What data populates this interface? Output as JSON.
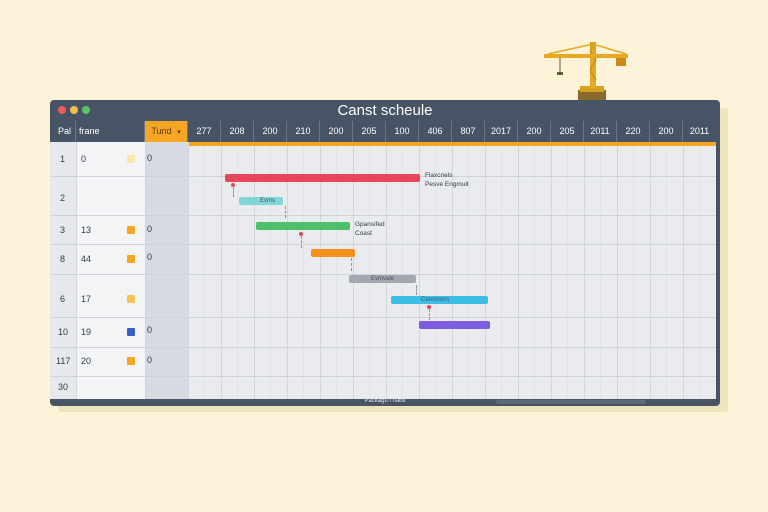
{
  "window": {
    "title": "Canst scheule"
  },
  "columns": {
    "c1": "Pal",
    "c2": "frane",
    "task": "Tund",
    "task_arrow": "▾"
  },
  "timeline": [
    "277",
    "208",
    "200",
    "210",
    "200",
    "205",
    "100",
    "406",
    "807",
    "2017",
    "200",
    "205",
    "2011",
    "220",
    "200",
    "2011"
  ],
  "rows": [
    {
      "num": "1",
      "a": "0",
      "icon": "#f6c453",
      "b": "0"
    },
    {
      "num": "2",
      "a": "",
      "icon": "",
      "b": ""
    },
    {
      "num": "3",
      "a": "13",
      "icon": "#f6a623",
      "b": "0"
    },
    {
      "num": "8",
      "a": "44",
      "icon": "#f6a623",
      "b": "0"
    },
    {
      "num": "6",
      "a": "17",
      "icon": "#f6c453",
      "b": ""
    },
    {
      "num": "10",
      "a": "19",
      "icon": "#3b5fc9",
      "b": "0"
    },
    {
      "num": "117",
      "a": "20",
      "icon": "#f6a623",
      "b": "0"
    },
    {
      "num": "30",
      "a": "",
      "icon": "",
      "b": ""
    }
  ],
  "bars": [
    {
      "color": "#e8475b",
      "label": ""
    },
    {
      "color": "#7fd6d6",
      "label": "Evms"
    },
    {
      "color": "#4cc16a",
      "label": ""
    },
    {
      "color": "#f5901c",
      "label": ""
    },
    {
      "color": "#a3a8b0",
      "label": "Evmvale"
    },
    {
      "color": "#3bbde4",
      "label": "Cancinons"
    },
    {
      "color": "#7d5ce0",
      "label": ""
    }
  ],
  "annotations": {
    "a1_line1": "Flaxcnels",
    "a1_line2": "Pesve Engmuit",
    "a2_line1": "Gpansifed",
    "a2_line2": "Coast"
  },
  "footer": {
    "status": "Packagu l habit"
  },
  "icons": {
    "crane": "crane-icon"
  }
}
